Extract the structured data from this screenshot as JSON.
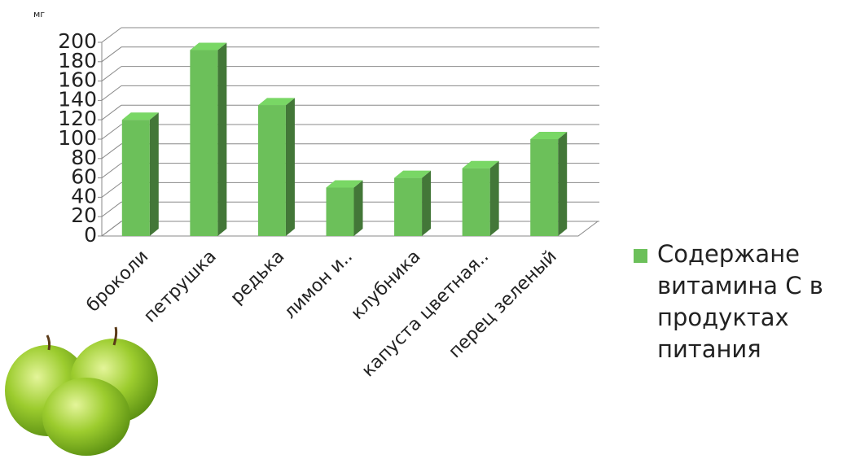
{
  "chart_data": {
    "type": "bar3d",
    "y_label": "мг",
    "categories": [
      "броколи",
      "петрушка",
      "редька",
      "лимон и..",
      "клубника",
      "капуста цветная..",
      "перец зеленый"
    ],
    "series": [
      {
        "name": "Содержане витамина С в продуктах питания",
        "color": "#6cc05a",
        "values": [
          120,
          192,
          135,
          50,
          60,
          70,
          100
        ]
      }
    ],
    "ylim": [
      0,
      200
    ],
    "yticks": [
      0,
      20,
      40,
      60,
      80,
      100,
      120,
      140,
      160,
      180,
      200
    ],
    "grid": true,
    "legend": "right"
  }
}
